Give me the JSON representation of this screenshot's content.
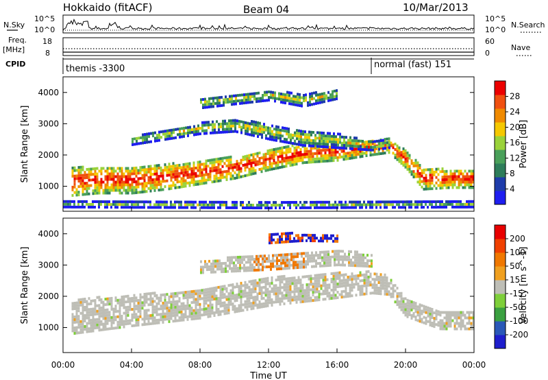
{
  "header": {
    "title": "Hokkaido (fitACF)",
    "beam": "Beam 04",
    "date": "10/Mar/2013"
  },
  "top_panels": {
    "nsky_label": "N.Sky",
    "nsearch_label": "N.Search",
    "noise_ticks_left": [
      "10^5",
      "10^0"
    ],
    "noise_ticks_right": [
      "10^5",
      "10^0"
    ],
    "freq_label": "Freq.",
    "freq_unit": "[MHz]",
    "freq_ticks": [
      "18",
      "8"
    ],
    "nave_label": "Nave",
    "nave_ticks": [
      "60",
      "0"
    ],
    "cpid_label": "CPID",
    "cpid_segments": [
      {
        "label": "themis -3300",
        "start_hour": 0,
        "end_hour": 18
      },
      {
        "label": "normal (fast) 151",
        "start_hour": 18,
        "end_hour": 24
      }
    ]
  },
  "colors": {
    "power_scale": [
      "#1e1ef0",
      "#1e3caa",
      "#2e7d5a",
      "#4aa05a",
      "#9ad23a",
      "#f5c800",
      "#f08a00",
      "#f05010",
      "#ec0000"
    ],
    "velocity_scale": [
      "#e80000",
      "#f04000",
      "#f07800",
      "#f0a020",
      "#bebeb6",
      "#7ecf3a",
      "#3aa040",
      "#2a58b8",
      "#1e1ecc"
    ]
  },
  "chart_data": [
    {
      "type": "heatmap",
      "panel": "power",
      "ylabel": "Slant Range [km]",
      "x_range_hours": [
        0,
        24
      ],
      "ylim": [
        200,
        4500
      ],
      "yticks": [
        "4000",
        "3000",
        "2000",
        "1000"
      ],
      "colorbar": {
        "label": "Power [dB]",
        "ticks": [
          "28",
          "24",
          "20",
          "16",
          "12",
          "8",
          "4"
        ],
        "range": [
          0,
          30
        ]
      },
      "bands": [
        {
          "name": "main echo",
          "points": [
            [
              0.5,
              1200,
              900
            ],
            [
              2,
              1250,
              850
            ],
            [
              4,
              1250,
              850
            ],
            [
              6,
              1350,
              800
            ],
            [
              8,
              1500,
              750
            ],
            [
              10,
              1650,
              700
            ],
            [
              12,
              1900,
              650
            ],
            [
              14,
              2100,
              600
            ],
            [
              16,
              2150,
              550
            ],
            [
              18,
              2300,
              500
            ],
            [
              19,
              2350,
              450
            ],
            [
              20,
              1900,
              550
            ],
            [
              21,
              1300,
              700
            ],
            [
              22.5,
              1300,
              600
            ],
            [
              24,
              1300,
              600
            ]
          ]
        },
        {
          "name": "upper layer",
          "points": [
            [
              4,
              2500,
              250
            ],
            [
              8,
              2900,
              350
            ],
            [
              10,
              3000,
              400
            ],
            [
              12,
              2800,
              500
            ],
            [
              14,
              2600,
              500
            ],
            [
              16,
              2500,
              450
            ],
            [
              18,
              2350,
              300
            ],
            [
              19,
              2400,
              250
            ]
          ]
        },
        {
          "name": "high layer",
          "points": [
            [
              8,
              3700,
              300
            ],
            [
              12,
              3950,
              300
            ],
            [
              14,
              3800,
              400
            ],
            [
              16,
              4000,
              300
            ]
          ]
        },
        {
          "name": "near range",
          "points": [
            [
              0,
              480,
              200
            ],
            [
              12,
              450,
              200
            ],
            [
              24,
              480,
              200
            ]
          ]
        }
      ]
    },
    {
      "type": "heatmap",
      "panel": "velocity",
      "ylabel": "Slant Range [km]",
      "xlabel": "Time UT",
      "x_range_hours": [
        0,
        24
      ],
      "xticks": [
        "00:00",
        "04:00",
        "08:00",
        "12:00",
        "16:00",
        "20:00",
        "00:00"
      ],
      "ylim": [
        200,
        4500
      ],
      "yticks": [
        "4000",
        "3000",
        "2000",
        "1000"
      ],
      "colorbar": {
        "label": "Velocity [m s^-1]",
        "ticks": [
          "200",
          "100",
          "50",
          "15",
          "-15",
          "-50",
          "-100",
          "-200"
        ]
      },
      "bands": [
        {
          "name": "main echo",
          "points": [
            [
              0.5,
              1400,
              1100
            ],
            [
              4,
              1600,
              1000
            ],
            [
              8,
              1800,
              900
            ],
            [
              12,
              2200,
              900
            ],
            [
              16,
              2400,
              800
            ],
            [
              18,
              2500,
              700
            ],
            [
              19,
              2400,
              600
            ],
            [
              20,
              1700,
              600
            ],
            [
              22,
              1300,
              600
            ],
            [
              24,
              1300,
              600
            ]
          ]
        },
        {
          "name": "upper layer",
          "points": [
            [
              8,
              3000,
              400
            ],
            [
              12,
              3150,
              500
            ],
            [
              16,
              3300,
              500
            ],
            [
              18,
              3200,
              400
            ]
          ]
        },
        {
          "name": "high layer",
          "points": [
            [
              12,
              3900,
              300
            ],
            [
              14,
              3950,
              250
            ],
            [
              16,
              3900,
              200
            ]
          ]
        }
      ]
    }
  ]
}
